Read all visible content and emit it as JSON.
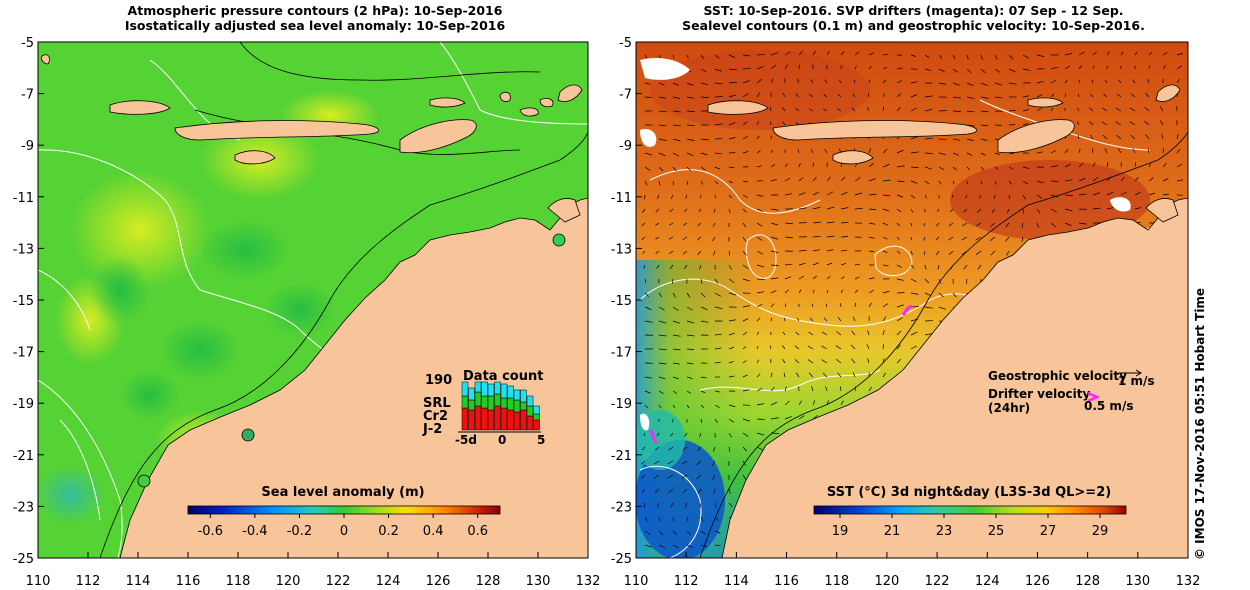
{
  "left_panel": {
    "title_line1": "Atmospheric pressure contours (2 hPa): 10-Sep-2016",
    "title_line2": "Isostatically adjusted sea level anomaly: 10-Sep-2016",
    "y_ticks": [
      "-5",
      "-7",
      "-9",
      "-11",
      "-13",
      "-15",
      "-17",
      "-19",
      "-21",
      "-23",
      "-25"
    ],
    "x_ticks": [
      "110",
      "112",
      "114",
      "116",
      "118",
      "120",
      "122",
      "124",
      "126",
      "128",
      "130",
      "132"
    ],
    "colorbar_title": "Sea level anomaly (m)",
    "colorbar_ticks": [
      "-0.6",
      "-0.4",
      "-0.2",
      "0",
      "0.2",
      "0.4",
      "0.6"
    ],
    "inset": {
      "title": "Data count",
      "ymax": "190",
      "series": [
        {
          "name": "SRL",
          "color": "#22e0f0"
        },
        {
          "name": "Cr2",
          "color": "#22cc22"
        },
        {
          "name": "J-2",
          "color": "#ee1111"
        }
      ],
      "x_ticks": [
        "-5d",
        "0",
        "5"
      ]
    }
  },
  "right_panel": {
    "title_line1": "SST: 10-Sep-2016. SVP drifters (magenta): 07 Sep - 12 Sep.",
    "title_line2": "Sealevel contours (0.1 m) and geostrophic velocity: 10-Sep-2016.",
    "y_ticks": [
      "-5",
      "-7",
      "-9",
      "-11",
      "-13",
      "-15",
      "-17",
      "-19",
      "-21",
      "-23",
      "-25"
    ],
    "x_ticks": [
      "110",
      "112",
      "114",
      "116",
      "118",
      "120",
      "122",
      "124",
      "126",
      "128",
      "130",
      "132"
    ],
    "colorbar_title": "SST (°C) 3d night&day (L3S-3d QL>=2)",
    "colorbar_ticks": [
      "19",
      "21",
      "23",
      "25",
      "27",
      "29"
    ],
    "legend": {
      "geo_label": "Geostrophic velocity",
      "geo_value": "1 m/s",
      "drifter_label_1": "Drifter velocity",
      "drifter_label_2": "(24hr)",
      "drifter_value": "0.5 m/s"
    }
  },
  "side_credit": "© IMOS 17-Nov-2016 05:51 Hobart Time",
  "colors": {
    "land": "#f8c49a",
    "drifter": "#ff22ff",
    "sla_colormap": [
      "#000066",
      "#0022cc",
      "#0099ff",
      "#22ccbb",
      "#33cc33",
      "#88dd22",
      "#ffdd00",
      "#ff8800",
      "#cc2200",
      "#880000"
    ],
    "sst_colormap": [
      "#000066",
      "#0044dd",
      "#00aaff",
      "#33cc99",
      "#44cc33",
      "#bbdd22",
      "#ffcc00",
      "#ff8800",
      "#dd4400",
      "#990000"
    ]
  }
}
